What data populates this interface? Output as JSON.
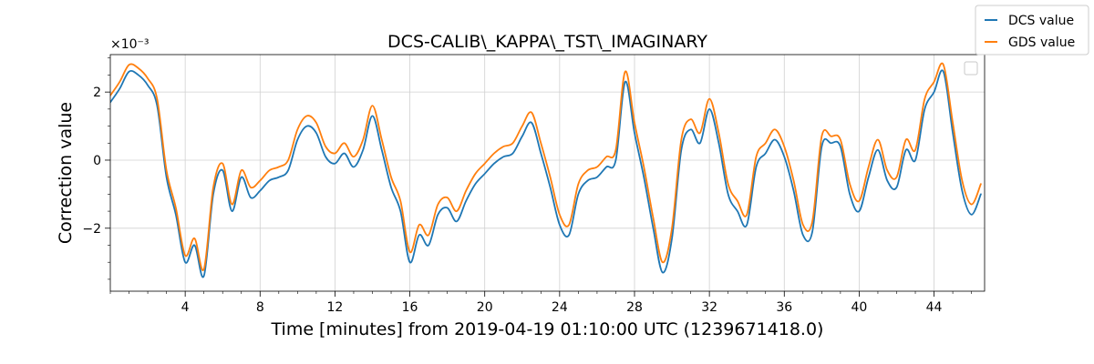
{
  "chart_data": {
    "type": "line",
    "title": "DCS-CALIB\\_KAPPA\\_TST\\_IMAGINARY",
    "xlabel": "Time [minutes] from 2019-04-19 01:10:00 UTC (1239671418.0)",
    "ylabel": "Correction value",
    "y_scale_label": "×10⁻³",
    "xlim": [
      0,
      46.7
    ],
    "ylim": [
      -3.85,
      3.1
    ],
    "x_ticks": [
      4,
      8,
      12,
      16,
      20,
      24,
      28,
      32,
      36,
      40,
      44
    ],
    "y_ticks": [
      -2,
      0,
      2
    ],
    "y_tick_labels": [
      "−2",
      "0",
      "2"
    ],
    "grid": true,
    "legend_position": "top-right (outside axes)",
    "x": [
      0,
      0.5,
      1,
      1.5,
      2,
      2.5,
      3,
      3.5,
      4,
      4.5,
      5,
      5.5,
      6,
      6.5,
      7,
      7.5,
      8,
      8.5,
      9,
      9.5,
      10,
      10.5,
      11,
      11.5,
      12,
      12.5,
      13,
      13.5,
      14,
      14.5,
      15,
      15.5,
      16,
      16.5,
      17,
      17.5,
      18,
      18.5,
      19,
      19.5,
      20,
      20.5,
      21,
      21.5,
      22,
      22.5,
      23,
      23.5,
      24,
      24.5,
      25,
      25.5,
      26,
      26.5,
      27,
      27.5,
      28,
      28.5,
      29,
      29.5,
      30,
      30.5,
      31,
      31.5,
      32,
      32.5,
      33,
      33.5,
      34,
      34.5,
      35,
      35.5,
      36,
      36.5,
      37,
      37.5,
      38,
      38.5,
      39,
      39.5,
      40,
      40.5,
      41,
      41.5,
      42,
      42.5,
      43,
      43.5,
      44,
      44.5,
      45,
      45.5,
      46,
      46.5
    ],
    "series": [
      {
        "name": "DCS value",
        "color": "#1f77b4",
        "values": [
          1.7,
          2.1,
          2.6,
          2.5,
          2.2,
          1.6,
          -0.5,
          -1.6,
          -3.0,
          -2.5,
          -3.4,
          -1.0,
          -0.3,
          -1.5,
          -0.5,
          -1.1,
          -0.9,
          -0.6,
          -0.5,
          -0.3,
          0.6,
          1.0,
          0.8,
          0.1,
          -0.1,
          0.2,
          -0.2,
          0.3,
          1.3,
          0.3,
          -0.8,
          -1.5,
          -3.0,
          -2.2,
          -2.5,
          -1.6,
          -1.4,
          -1.8,
          -1.2,
          -0.7,
          -0.4,
          -0.1,
          0.1,
          0.2,
          0.7,
          1.1,
          0.2,
          -0.8,
          -1.9,
          -2.2,
          -1.0,
          -0.6,
          -0.5,
          -0.2,
          0.0,
          2.3,
          0.8,
          -0.5,
          -2.0,
          -3.3,
          -2.3,
          0.3,
          0.9,
          0.5,
          1.5,
          0.5,
          -1.0,
          -1.5,
          -1.9,
          -0.2,
          0.2,
          0.6,
          0.1,
          -0.9,
          -2.2,
          -2.1,
          0.4,
          0.5,
          0.4,
          -1.0,
          -1.5,
          -0.5,
          0.3,
          -0.6,
          -0.8,
          0.3,
          0.0,
          1.5,
          2.0,
          2.6,
          0.8,
          -0.9,
          -1.6,
          -1.0
        ]
      },
      {
        "name": "GDS value",
        "color": "#ff7f0e",
        "values": [
          1.9,
          2.3,
          2.8,
          2.7,
          2.4,
          1.8,
          -0.3,
          -1.4,
          -2.8,
          -2.3,
          -3.2,
          -0.8,
          -0.1,
          -1.3,
          -0.3,
          -0.8,
          -0.6,
          -0.3,
          -0.2,
          0.0,
          0.9,
          1.3,
          1.1,
          0.4,
          0.2,
          0.5,
          0.1,
          0.6,
          1.6,
          0.6,
          -0.5,
          -1.2,
          -2.7,
          -1.9,
          -2.2,
          -1.3,
          -1.1,
          -1.5,
          -0.9,
          -0.4,
          -0.1,
          0.2,
          0.4,
          0.5,
          1.0,
          1.4,
          0.5,
          -0.5,
          -1.6,
          -1.9,
          -0.7,
          -0.3,
          -0.2,
          0.1,
          0.3,
          2.6,
          1.1,
          -0.2,
          -1.7,
          -3.0,
          -2.0,
          0.6,
          1.2,
          0.8,
          1.8,
          0.8,
          -0.7,
          -1.2,
          -1.6,
          0.1,
          0.5,
          0.9,
          0.4,
          -0.6,
          -1.9,
          -1.8,
          0.7,
          0.7,
          0.6,
          -0.7,
          -1.2,
          -0.2,
          0.6,
          -0.3,
          -0.5,
          0.6,
          0.3,
          1.8,
          2.3,
          2.8,
          1.1,
          -0.6,
          -1.3,
          -0.7
        ]
      }
    ]
  }
}
